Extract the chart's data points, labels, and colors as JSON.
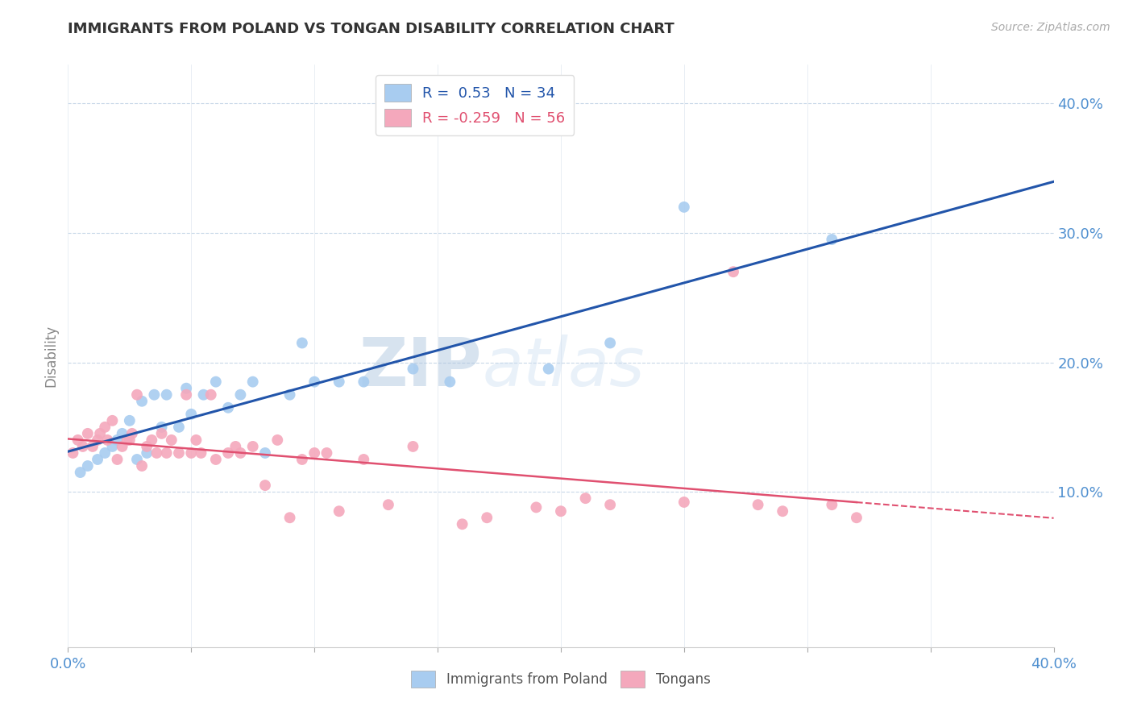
{
  "title": "IMMIGRANTS FROM POLAND VS TONGAN DISABILITY CORRELATION CHART",
  "source": "Source: ZipAtlas.com",
  "ylabel_label": "Disability",
  "xlim": [
    0.0,
    0.4
  ],
  "ylim": [
    -0.02,
    0.43
  ],
  "x_ticks": [
    0.0,
    0.05,
    0.1,
    0.15,
    0.2,
    0.25,
    0.3,
    0.35,
    0.4
  ],
  "y_ticks": [
    0.1,
    0.2,
    0.3,
    0.4
  ],
  "y_tick_labels": [
    "10.0%",
    "20.0%",
    "30.0%",
    "40.0%"
  ],
  "blue_R": 0.53,
  "blue_N": 34,
  "pink_R": -0.259,
  "pink_N": 56,
  "blue_color": "#A8CCF0",
  "pink_color": "#F4A8BC",
  "blue_line_color": "#2255AA",
  "pink_line_color": "#E05070",
  "watermark_zip": "ZIP",
  "watermark_atlas": "atlas",
  "legend_label_blue": "Immigrants from Poland",
  "legend_label_pink": "Tongans",
  "blue_scatter_x": [
    0.005,
    0.008,
    0.012,
    0.015,
    0.018,
    0.02,
    0.022,
    0.025,
    0.028,
    0.03,
    0.032,
    0.035,
    0.038,
    0.04,
    0.045,
    0.048,
    0.05,
    0.055,
    0.06,
    0.065,
    0.07,
    0.075,
    0.08,
    0.09,
    0.095,
    0.1,
    0.11,
    0.12,
    0.14,
    0.155,
    0.195,
    0.22,
    0.25,
    0.31
  ],
  "blue_scatter_y": [
    0.115,
    0.12,
    0.125,
    0.13,
    0.135,
    0.14,
    0.145,
    0.155,
    0.125,
    0.17,
    0.13,
    0.175,
    0.15,
    0.175,
    0.15,
    0.18,
    0.16,
    0.175,
    0.185,
    0.165,
    0.175,
    0.185,
    0.13,
    0.175,
    0.215,
    0.185,
    0.185,
    0.185,
    0.195,
    0.185,
    0.195,
    0.215,
    0.32,
    0.295
  ],
  "pink_scatter_x": [
    0.002,
    0.004,
    0.006,
    0.008,
    0.01,
    0.012,
    0.013,
    0.015,
    0.016,
    0.018,
    0.02,
    0.022,
    0.024,
    0.025,
    0.026,
    0.028,
    0.03,
    0.032,
    0.034,
    0.036,
    0.038,
    0.04,
    0.042,
    0.045,
    0.048,
    0.05,
    0.052,
    0.054,
    0.058,
    0.06,
    0.065,
    0.068,
    0.07,
    0.075,
    0.08,
    0.085,
    0.09,
    0.095,
    0.1,
    0.105,
    0.11,
    0.12,
    0.13,
    0.14,
    0.16,
    0.17,
    0.19,
    0.2,
    0.21,
    0.22,
    0.25,
    0.27,
    0.28,
    0.29,
    0.31,
    0.32
  ],
  "pink_scatter_y": [
    0.13,
    0.14,
    0.135,
    0.145,
    0.135,
    0.14,
    0.145,
    0.15,
    0.14,
    0.155,
    0.125,
    0.135,
    0.14,
    0.14,
    0.145,
    0.175,
    0.12,
    0.135,
    0.14,
    0.13,
    0.145,
    0.13,
    0.14,
    0.13,
    0.175,
    0.13,
    0.14,
    0.13,
    0.175,
    0.125,
    0.13,
    0.135,
    0.13,
    0.135,
    0.105,
    0.14,
    0.08,
    0.125,
    0.13,
    0.13,
    0.085,
    0.125,
    0.09,
    0.135,
    0.075,
    0.08,
    0.088,
    0.085,
    0.095,
    0.09,
    0.092,
    0.27,
    0.09,
    0.085,
    0.09,
    0.08
  ]
}
